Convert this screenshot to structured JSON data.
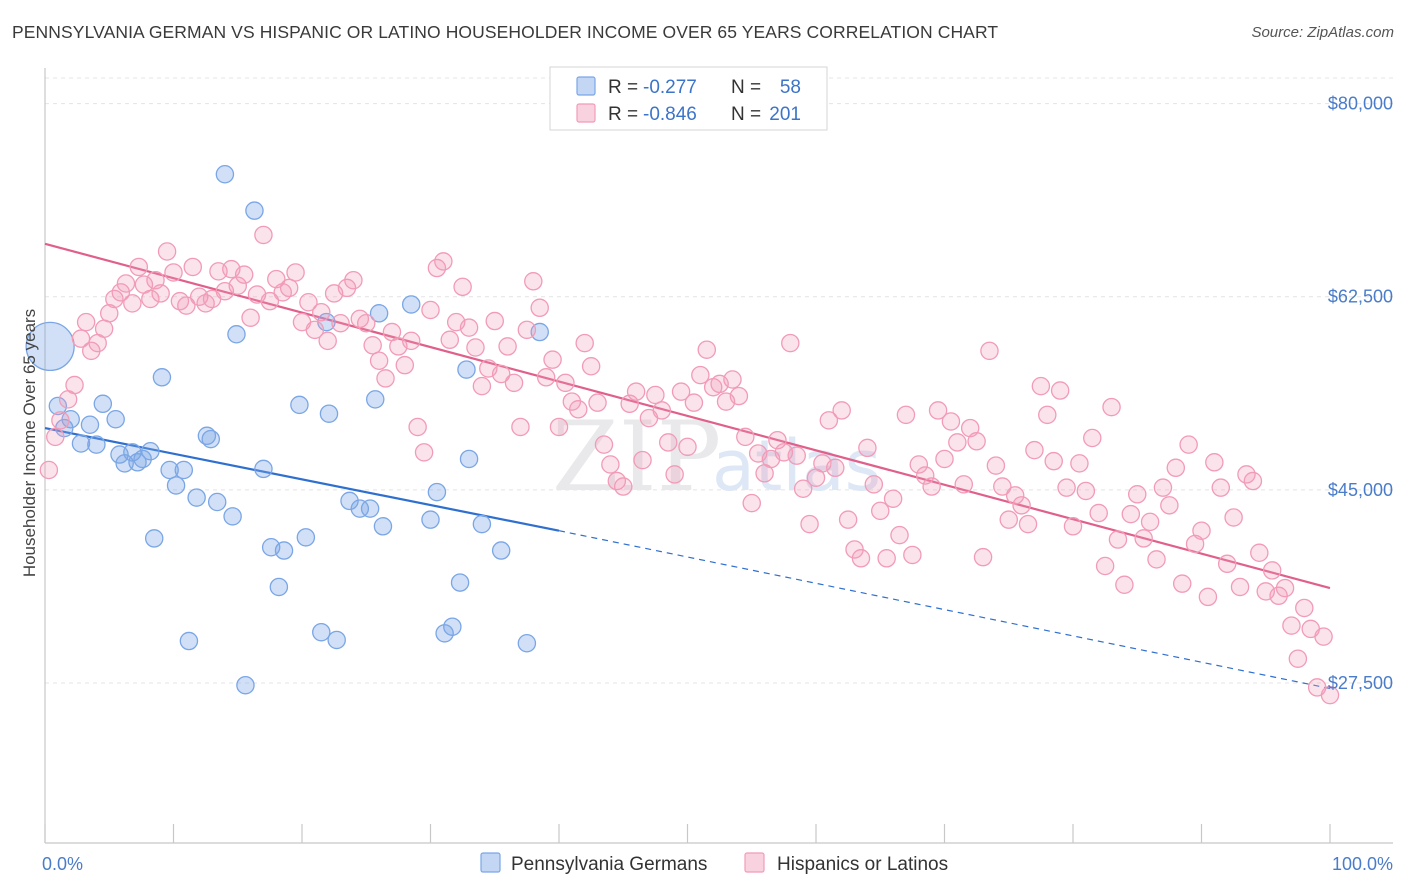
{
  "title": "PENNSYLVANIA GERMAN VS HISPANIC OR LATINO HOUSEHOLDER INCOME OVER 65 YEARS CORRELATION CHART",
  "source": "Source: ZipAtlas.com",
  "watermark": {
    "part1": "ZIP",
    "part2": "atlas"
  },
  "legend_top": {
    "rows": [
      {
        "r_label": "R =",
        "r_value": "-0.277",
        "n_label": "N =",
        "n_value": "58",
        "color": "#7aa6e6"
      },
      {
        "r_label": "R =",
        "r_value": "-0.846",
        "n_label": "N =",
        "n_value": "201",
        "color": "#f29bb7"
      }
    ]
  },
  "chart_data": {
    "type": "scatter",
    "title": "PENNSYLVANIA GERMAN VS HISPANIC OR LATINO HOUSEHOLDER INCOME OVER 65 YEARS CORRELATION CHART",
    "xlabel": "",
    "ylabel": "Householder Income Over 65 years",
    "xlim": [
      0,
      100
    ],
    "ylim": [
      13000,
      83500
    ],
    "x_tick_labels": [
      "0.0%",
      "100.0%"
    ],
    "y_ticks": [
      27500,
      45000,
      62500,
      80000
    ],
    "y_tick_labels": [
      "$27,500",
      "$45,000",
      "$62,500",
      "$80,000"
    ],
    "grid": true,
    "legend_position": "bottom",
    "series": [
      {
        "name": "Pennsylvania Germans",
        "color": "#7aa6e6",
        "fill": "rgba(122,166,230,0.35)",
        "trend": {
          "x0": 0,
          "y0": 50600,
          "x1": 40,
          "y1": 41300,
          "dash_to_x": 100,
          "dash_to_y": 27000
        },
        "points": [
          [
            0.4,
            58000
          ],
          [
            1,
            52600
          ],
          [
            1.5,
            50600
          ],
          [
            2,
            51400
          ],
          [
            3.5,
            50900
          ],
          [
            2.8,
            49200
          ],
          [
            4,
            49100
          ],
          [
            4.5,
            52800
          ],
          [
            5.5,
            51400
          ],
          [
            5.8,
            48200
          ],
          [
            6.2,
            47400
          ],
          [
            6.8,
            48400
          ],
          [
            7.2,
            47500
          ],
          [
            7.6,
            47800
          ],
          [
            8.2,
            48500
          ],
          [
            8.5,
            40600
          ],
          [
            9.1,
            55200
          ],
          [
            9.7,
            46800
          ],
          [
            10.2,
            45400
          ],
          [
            10.8,
            46800
          ],
          [
            11.2,
            31300
          ],
          [
            11.8,
            44300
          ],
          [
            12.6,
            49900
          ],
          [
            12.9,
            49600
          ],
          [
            13.4,
            43900
          ],
          [
            14.0,
            73600
          ],
          [
            14.6,
            42600
          ],
          [
            14.9,
            59100
          ],
          [
            15.6,
            27300
          ],
          [
            16.3,
            70300
          ],
          [
            17.0,
            46900
          ],
          [
            17.6,
            39800
          ],
          [
            18.2,
            36200
          ],
          [
            18.6,
            39500
          ],
          [
            19.8,
            52700
          ],
          [
            20.3,
            40700
          ],
          [
            21.5,
            32100
          ],
          [
            21.9,
            60200
          ],
          [
            22.1,
            51900
          ],
          [
            22.7,
            31400
          ],
          [
            23.7,
            44000
          ],
          [
            24.5,
            43300
          ],
          [
            25.3,
            43300
          ],
          [
            25.7,
            53200
          ],
          [
            26.0,
            61000
          ],
          [
            26.3,
            41700
          ],
          [
            28.5,
            61800
          ],
          [
            30.0,
            42300
          ],
          [
            30.5,
            44800
          ],
          [
            31.1,
            32000
          ],
          [
            31.7,
            32600
          ],
          [
            32.3,
            36600
          ],
          [
            32.8,
            55900
          ],
          [
            33.0,
            47800
          ],
          [
            34.0,
            41900
          ],
          [
            35.5,
            39500
          ],
          [
            37.5,
            31100
          ],
          [
            38.5,
            59300
          ]
        ]
      },
      {
        "name": "Hispanics or Latinos",
        "color": "#f29bb7",
        "fill": "rgba(242,155,183,0.28)",
        "trend": {
          "x0": 0,
          "y0": 67300,
          "x1": 100,
          "y1": 36100
        },
        "points": [
          [
            0.3,
            46800
          ],
          [
            0.8,
            49800
          ],
          [
            1.2,
            51300
          ],
          [
            1.8,
            53200
          ],
          [
            2.3,
            54500
          ],
          [
            2.8,
            58700
          ],
          [
            3.2,
            60200
          ],
          [
            3.6,
            57600
          ],
          [
            4.1,
            58300
          ],
          [
            4.6,
            59600
          ],
          [
            5.0,
            61000
          ],
          [
            5.4,
            62300
          ],
          [
            5.9,
            62900
          ],
          [
            6.3,
            63700
          ],
          [
            6.8,
            61900
          ],
          [
            7.3,
            65200
          ],
          [
            7.7,
            63600
          ],
          [
            8.2,
            62300
          ],
          [
            8.6,
            64000
          ],
          [
            9.0,
            62800
          ],
          [
            9.5,
            66600
          ],
          [
            10.0,
            64700
          ],
          [
            10.5,
            62100
          ],
          [
            11.0,
            61700
          ],
          [
            11.5,
            65200
          ],
          [
            12.0,
            62500
          ],
          [
            12.5,
            61900
          ],
          [
            13.0,
            62300
          ],
          [
            13.5,
            64800
          ],
          [
            14.0,
            63000
          ],
          [
            14.5,
            65000
          ],
          [
            15.0,
            63500
          ],
          [
            15.5,
            64500
          ],
          [
            16.0,
            60600
          ],
          [
            16.5,
            62700
          ],
          [
            17.0,
            68100
          ],
          [
            17.5,
            62100
          ],
          [
            18.0,
            64100
          ],
          [
            18.5,
            62900
          ],
          [
            19.0,
            63300
          ],
          [
            19.5,
            64700
          ],
          [
            20.0,
            60200
          ],
          [
            20.5,
            62000
          ],
          [
            21.0,
            59500
          ],
          [
            21.5,
            61100
          ],
          [
            22.0,
            58500
          ],
          [
            22.5,
            62800
          ],
          [
            23.0,
            60100
          ],
          [
            23.5,
            63300
          ],
          [
            24.0,
            64000
          ],
          [
            24.5,
            60500
          ],
          [
            25.0,
            60100
          ],
          [
            25.5,
            58100
          ],
          [
            26.0,
            56700
          ],
          [
            26.5,
            55100
          ],
          [
            27.0,
            59300
          ],
          [
            27.5,
            58000
          ],
          [
            28.0,
            56300
          ],
          [
            28.5,
            58500
          ],
          [
            29.0,
            50700
          ],
          [
            29.5,
            48400
          ],
          [
            30.0,
            61300
          ],
          [
            30.5,
            65100
          ],
          [
            31.0,
            65700
          ],
          [
            31.5,
            58600
          ],
          [
            32.0,
            60200
          ],
          [
            32.5,
            63400
          ],
          [
            33.0,
            59700
          ],
          [
            33.5,
            57900
          ],
          [
            34.0,
            54400
          ],
          [
            34.5,
            56000
          ],
          [
            35.0,
            60300
          ],
          [
            35.5,
            55500
          ],
          [
            36.0,
            58000
          ],
          [
            36.5,
            54700
          ],
          [
            37.0,
            50700
          ],
          [
            37.5,
            59500
          ],
          [
            38.0,
            63900
          ],
          [
            38.5,
            61500
          ],
          [
            39.0,
            55200
          ],
          [
            39.5,
            56800
          ],
          [
            40.0,
            50700
          ],
          [
            40.5,
            54700
          ],
          [
            41.0,
            53000
          ],
          [
            41.5,
            52300
          ],
          [
            42.0,
            58300
          ],
          [
            42.5,
            56200
          ],
          [
            43.0,
            52900
          ],
          [
            43.5,
            49100
          ],
          [
            44.0,
            47300
          ],
          [
            44.5,
            45800
          ],
          [
            45.0,
            45300
          ],
          [
            45.5,
            52800
          ],
          [
            46.0,
            53900
          ],
          [
            46.5,
            47700
          ],
          [
            47.0,
            51500
          ],
          [
            47.5,
            53600
          ],
          [
            48.0,
            52200
          ],
          [
            48.5,
            49300
          ],
          [
            49.0,
            46400
          ],
          [
            49.5,
            53900
          ],
          [
            50.0,
            48900
          ],
          [
            50.5,
            52900
          ],
          [
            51.0,
            55400
          ],
          [
            51.5,
            57700
          ],
          [
            52.0,
            54300
          ],
          [
            52.5,
            54600
          ],
          [
            53.0,
            53000
          ],
          [
            53.5,
            55000
          ],
          [
            54.0,
            53500
          ],
          [
            54.5,
            49800
          ],
          [
            55.0,
            43800
          ],
          [
            55.5,
            48300
          ],
          [
            56.0,
            46500
          ],
          [
            56.5,
            47800
          ],
          [
            57.0,
            49500
          ],
          [
            57.5,
            48400
          ],
          [
            58.0,
            58300
          ],
          [
            58.5,
            48100
          ],
          [
            59.0,
            45100
          ],
          [
            59.5,
            41900
          ],
          [
            60.0,
            46100
          ],
          [
            60.5,
            47400
          ],
          [
            61.0,
            51300
          ],
          [
            61.5,
            47000
          ],
          [
            62.0,
            52200
          ],
          [
            62.5,
            42300
          ],
          [
            63.0,
            39600
          ],
          [
            63.5,
            38800
          ],
          [
            64.0,
            48800
          ],
          [
            64.5,
            45500
          ],
          [
            65.0,
            43100
          ],
          [
            65.5,
            38800
          ],
          [
            66.0,
            44200
          ],
          [
            66.5,
            40900
          ],
          [
            67.0,
            51800
          ],
          [
            67.5,
            39100
          ],
          [
            68.0,
            47300
          ],
          [
            68.5,
            46300
          ],
          [
            69.0,
            45300
          ],
          [
            69.5,
            52200
          ],
          [
            70.0,
            47800
          ],
          [
            70.5,
            51200
          ],
          [
            71.0,
            49300
          ],
          [
            71.5,
            45500
          ],
          [
            72.0,
            50600
          ],
          [
            72.5,
            49400
          ],
          [
            73.0,
            38900
          ],
          [
            73.5,
            57600
          ],
          [
            74.0,
            47200
          ],
          [
            74.5,
            45300
          ],
          [
            75.0,
            42300
          ],
          [
            75.5,
            44500
          ],
          [
            76.0,
            43600
          ],
          [
            76.5,
            41900
          ],
          [
            77.0,
            48600
          ],
          [
            77.5,
            54400
          ],
          [
            78.0,
            51800
          ],
          [
            78.5,
            47600
          ],
          [
            79.0,
            54000
          ],
          [
            79.5,
            45200
          ],
          [
            80.0,
            41700
          ],
          [
            80.5,
            47400
          ],
          [
            81.0,
            44900
          ],
          [
            81.5,
            49700
          ],
          [
            82.0,
            42900
          ],
          [
            82.5,
            38100
          ],
          [
            83.0,
            52500
          ],
          [
            83.5,
            40500
          ],
          [
            84.0,
            36400
          ],
          [
            84.5,
            42800
          ],
          [
            85.0,
            44600
          ],
          [
            85.5,
            40600
          ],
          [
            86.0,
            42100
          ],
          [
            86.5,
            38700
          ],
          [
            87.0,
            45200
          ],
          [
            87.5,
            43600
          ],
          [
            88.0,
            47000
          ],
          [
            88.5,
            36500
          ],
          [
            89.0,
            49100
          ],
          [
            89.5,
            40100
          ],
          [
            90.0,
            41300
          ],
          [
            90.5,
            35300
          ],
          [
            91.0,
            47500
          ],
          [
            91.5,
            45200
          ],
          [
            92.0,
            38300
          ],
          [
            92.5,
            42500
          ],
          [
            93.0,
            36200
          ],
          [
            93.5,
            46400
          ],
          [
            94.0,
            45800
          ],
          [
            94.5,
            39300
          ],
          [
            95.0,
            35800
          ],
          [
            95.5,
            37700
          ],
          [
            96.0,
            35400
          ],
          [
            96.5,
            36100
          ],
          [
            97.0,
            32700
          ],
          [
            97.5,
            29700
          ],
          [
            98.0,
            34300
          ],
          [
            98.5,
            32400
          ],
          [
            99.0,
            27100
          ],
          [
            99.5,
            31700
          ],
          [
            100.0,
            26400
          ]
        ]
      }
    ]
  }
}
